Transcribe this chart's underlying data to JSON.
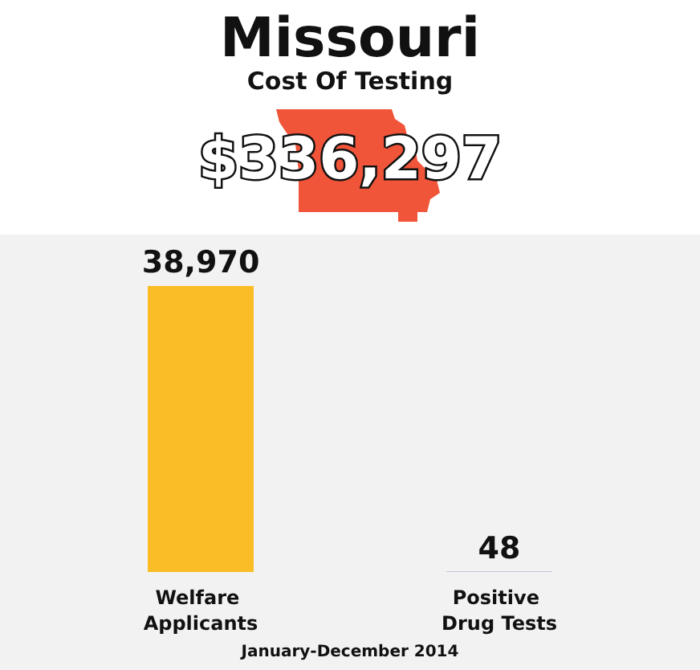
{
  "chart_data": {
    "type": "bar",
    "title": "Missouri",
    "subtitle": "Cost Of Testing",
    "annotations": [
      "$336,297",
      "January-December 2014"
    ],
    "categories": [
      "Welfare Applicants",
      "Positive Drug Tests"
    ],
    "values": [
      38970,
      48
    ],
    "value_labels": [
      "38,970",
      "48"
    ],
    "colors": [
      "#fbbd25",
      "#9d9bb9"
    ]
  }
}
